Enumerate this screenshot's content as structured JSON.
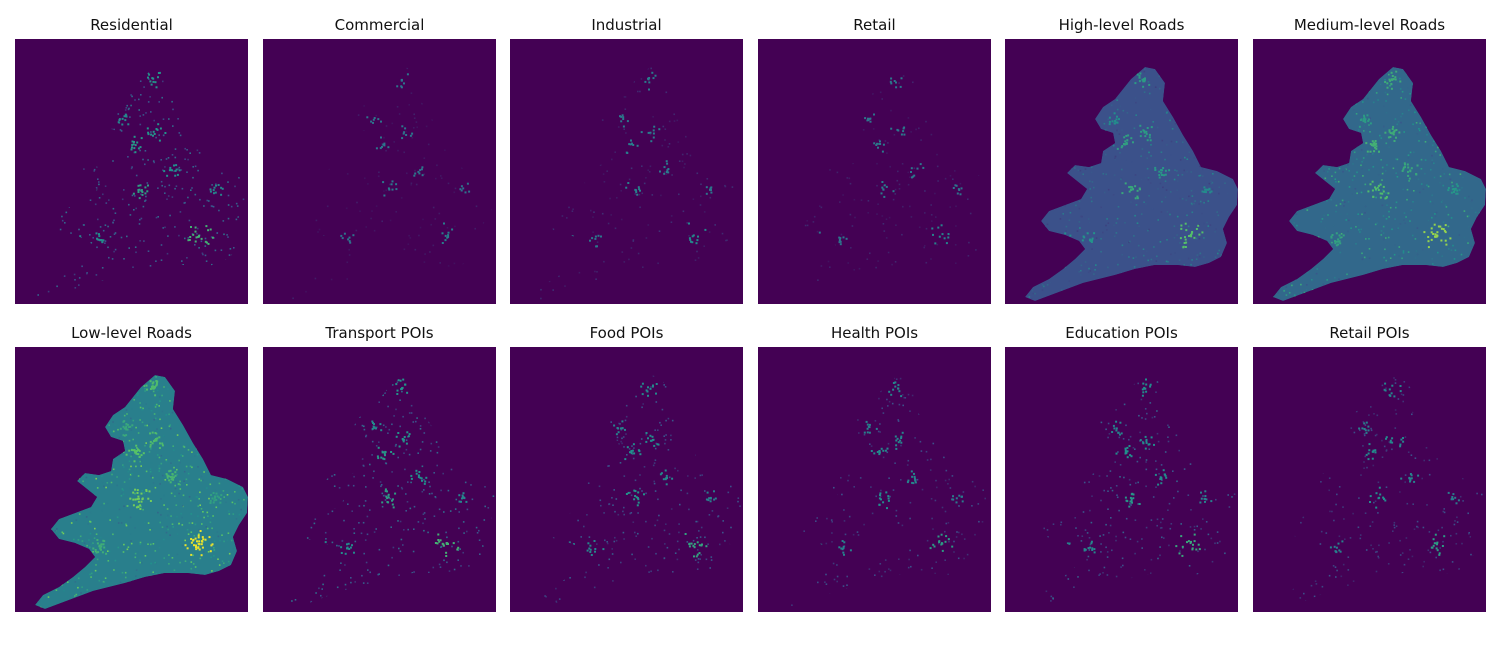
{
  "figure": {
    "background_color": "#440154",
    "colormap": "viridis",
    "panels": [
      {
        "title": "Residential",
        "intensity": 0.45
      },
      {
        "title": "Commercial",
        "intensity": 0.12
      },
      {
        "title": "Industrial",
        "intensity": 0.18
      },
      {
        "title": "Retail",
        "intensity": 0.15
      },
      {
        "title": "High-level Roads",
        "intensity": 0.55
      },
      {
        "title": "Medium-level Roads",
        "intensity": 0.75
      },
      {
        "title": "Low-level Roads",
        "intensity": 0.95
      },
      {
        "title": "Transport POIs",
        "intensity": 0.45
      },
      {
        "title": "Food POIs",
        "intensity": 0.35
      },
      {
        "title": "Health POIs",
        "intensity": 0.3
      },
      {
        "title": "Education POIs",
        "intensity": 0.38
      },
      {
        "title": "Retail POIs",
        "intensity": 0.3
      }
    ]
  }
}
